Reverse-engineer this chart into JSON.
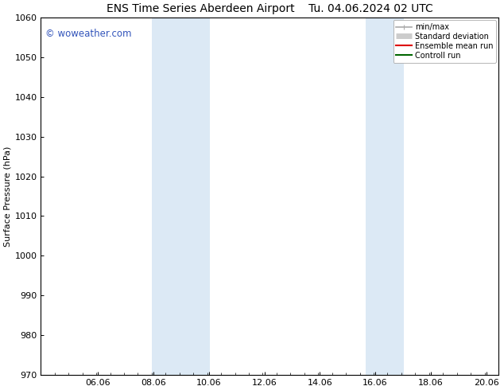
{
  "title_left": "ENS Time Series Aberdeen Airport",
  "title_right": "Tu. 04.06.2024 02 UTC",
  "ylabel": "Surface Pressure (hPa)",
  "ylim": [
    970,
    1060
  ],
  "yticks": [
    970,
    980,
    990,
    1000,
    1010,
    1020,
    1030,
    1040,
    1050,
    1060
  ],
  "xlim": [
    4.0,
    20.5
  ],
  "xticks": [
    6.06,
    8.06,
    10.06,
    12.06,
    14.06,
    16.06,
    18.06,
    20.06
  ],
  "xlabel_labels": [
    "06.06",
    "08.06",
    "10.06",
    "12.06",
    "14.06",
    "16.06",
    "18.06",
    "20.06"
  ],
  "shaded_bands": [
    {
      "x_start": 8.0,
      "x_end": 10.1
    },
    {
      "x_start": 15.7,
      "x_end": 17.1
    }
  ],
  "shaded_color": "#dce9f5",
  "background_color": "#ffffff",
  "watermark_text": "© woweather.com",
  "watermark_color": "#3355bb",
  "legend_items": [
    {
      "label": "min/max",
      "color": "#aaaaaa",
      "lw": 1.2
    },
    {
      "label": "Standard deviation",
      "color": "#cccccc",
      "lw": 5
    },
    {
      "label": "Ensemble mean run",
      "color": "#dd0000",
      "lw": 1.5
    },
    {
      "label": "Controll run",
      "color": "#006600",
      "lw": 1.5
    }
  ],
  "title_fontsize": 10,
  "ylabel_fontsize": 8,
  "tick_fontsize": 8,
  "watermark_fontsize": 8.5,
  "legend_fontsize": 7
}
